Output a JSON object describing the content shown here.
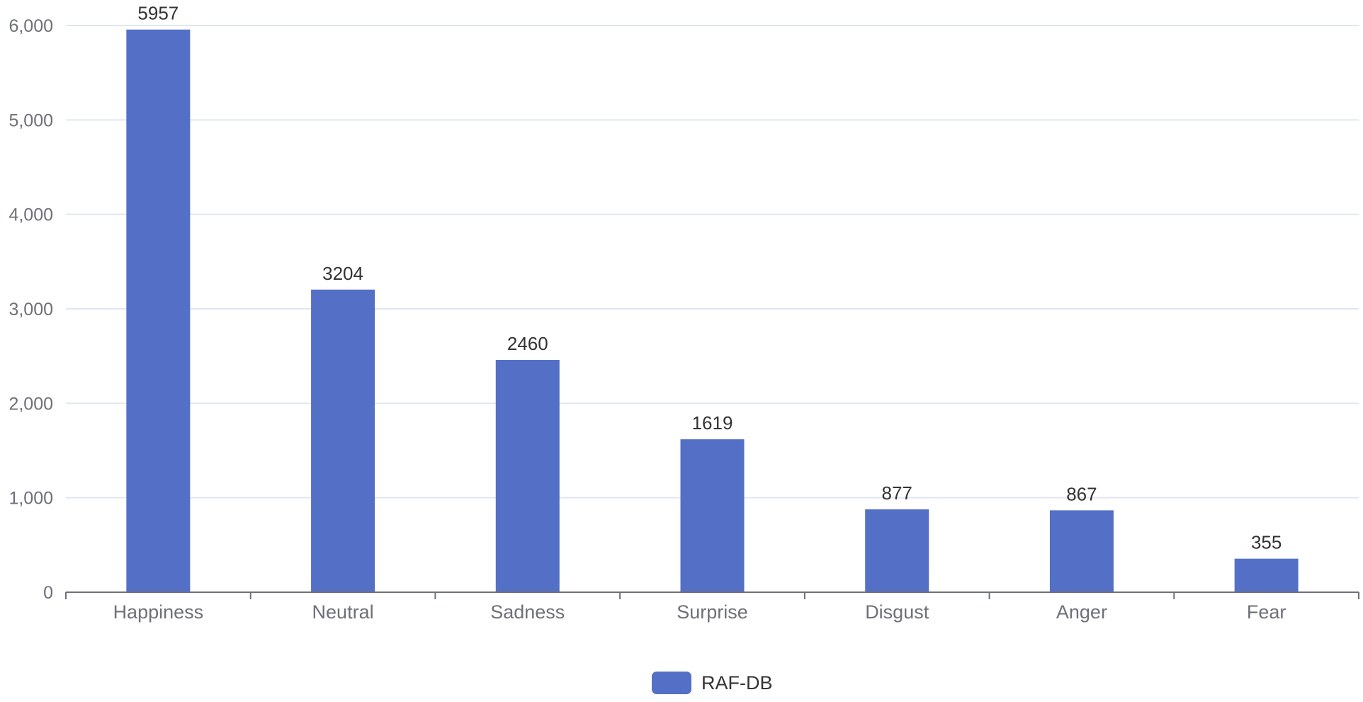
{
  "chart_data": {
    "type": "bar",
    "title": "",
    "xlabel": "",
    "ylabel": "",
    "categories": [
      "Happiness",
      "Neutral",
      "Sadness",
      "Surprise",
      "Disgust",
      "Anger",
      "Fear"
    ],
    "series": [
      {
        "name": "RAF-DB",
        "color": "#5470c6",
        "values": [
          5957,
          3204,
          2460,
          1619,
          877,
          867,
          355
        ]
      }
    ],
    "ylim": [
      0,
      6000
    ],
    "yticks": [
      0,
      1000,
      2000,
      3000,
      4000,
      5000,
      6000
    ],
    "ytick_labels": [
      "0",
      "1,000",
      "2,000",
      "3,000",
      "4,000",
      "5,000",
      "6,000"
    ],
    "grid": true,
    "legend": {
      "position": "bottom-center",
      "entries": [
        "RAF-DB"
      ]
    },
    "data_labels": true
  }
}
